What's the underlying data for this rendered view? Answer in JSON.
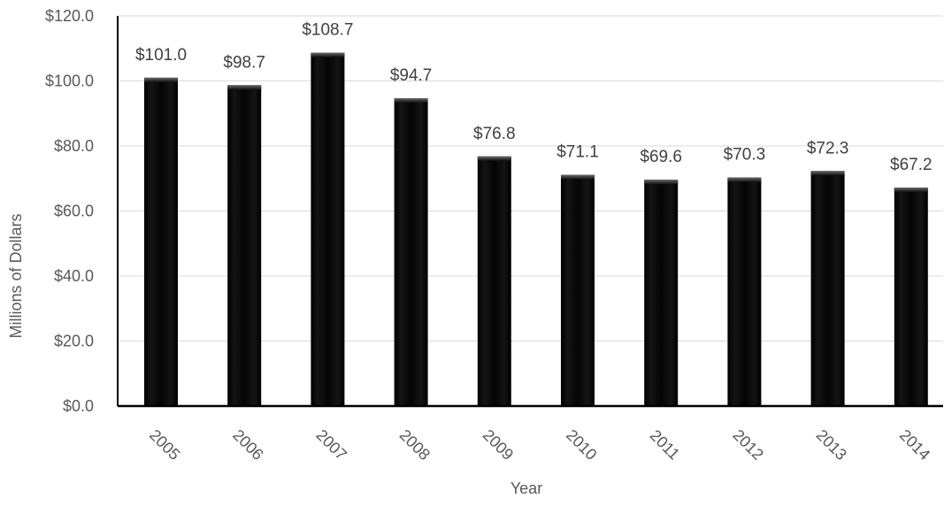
{
  "chart_data": {
    "type": "bar",
    "categories": [
      "2005",
      "2006",
      "2007",
      "2008",
      "2009",
      "2010",
      "2011",
      "2012",
      "2013",
      "2014"
    ],
    "values": [
      101.0,
      98.7,
      108.7,
      94.7,
      76.8,
      71.1,
      69.6,
      70.3,
      72.3,
      67.2
    ],
    "data_labels": [
      "$101.0",
      "$98.7",
      "$108.7",
      "$94.7",
      "$76.8",
      "$71.1",
      "$69.6",
      "$70.3",
      "$72.3",
      "$67.2"
    ],
    "title": "",
    "xlabel": "Year",
    "ylabel": "Millions of Dollars",
    "ylim": [
      0,
      120
    ],
    "yticks": [
      0,
      20,
      40,
      60,
      80,
      100,
      120
    ],
    "ytick_labels": [
      "$0.0",
      "$20.0",
      "$40.0",
      "$60.0",
      "$80.0",
      "$100.0",
      "$120.0"
    ],
    "grid": true,
    "bar_color": "#0a0a0a",
    "bar_highlight_color": "#5a5a5a",
    "legend": "none"
  }
}
